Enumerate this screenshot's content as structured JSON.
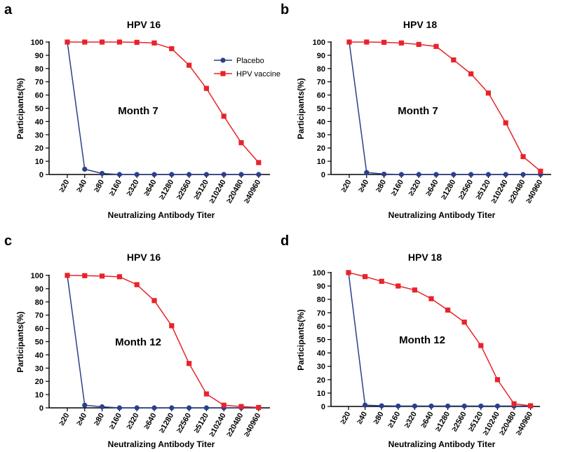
{
  "colors": {
    "placebo": "#2b3f8c",
    "vaccine": "#e8232a",
    "axis": "#000000"
  },
  "chart_data": [
    {
      "type": "line",
      "panel_letter": "a",
      "title": "HPV 16",
      "annotation": "Month 7",
      "xlabel": "Neutralizing Antibody Titer",
      "ylabel": "Participants(%)",
      "categories": [
        "≥20",
        "≥40",
        "≥80",
        "≥160",
        "≥320",
        "≥640",
        "≥1280",
        "≥2560",
        "≥5120",
        "≥10240",
        "≥20480",
        "≥40960"
      ],
      "yticks": [
        0,
        10,
        20,
        30,
        40,
        50,
        60,
        70,
        80,
        90,
        100
      ],
      "ylim": [
        0,
        100
      ],
      "legend": {
        "position": "top-right",
        "labels": [
          "Placebo",
          "HPV vaccine"
        ]
      },
      "series": [
        {
          "name": "Placebo",
          "marker": "circle",
          "values": [
            100,
            4,
            0.8,
            0,
            0,
            0,
            0,
            0,
            0,
            0,
            0,
            0
          ]
        },
        {
          "name": "HPV vaccine",
          "marker": "square",
          "values": [
            100,
            100,
            100,
            100,
            99.8,
            99.3,
            95,
            82.5,
            65,
            44,
            24,
            9
          ]
        }
      ]
    },
    {
      "type": "line",
      "panel_letter": "b",
      "title": "HPV 18",
      "annotation": "Month 7",
      "xlabel": "Neutralizing Antibody Titer",
      "ylabel": "Participants(%)",
      "categories": [
        "≥20",
        "≥40",
        "≥80",
        "≥160",
        "≥320",
        "≥640",
        "≥1280",
        "≥2560",
        "≥5120",
        "≥10240",
        "≥20480",
        "≥40960"
      ],
      "yticks": [
        0,
        10,
        20,
        30,
        40,
        50,
        60,
        70,
        80,
        90,
        100
      ],
      "ylim": [
        0,
        100
      ],
      "series": [
        {
          "name": "Placebo",
          "marker": "circle",
          "values": [
            100,
            1.5,
            0.3,
            0,
            0,
            0,
            0,
            0,
            0,
            0,
            0,
            0
          ]
        },
        {
          "name": "HPV vaccine",
          "marker": "square",
          "values": [
            100,
            100,
            99.8,
            99.3,
            98.2,
            96.7,
            86.5,
            76,
            61.5,
            39,
            13.5,
            2.5
          ]
        }
      ]
    },
    {
      "type": "line",
      "panel_letter": "c",
      "title": "HPV 16",
      "annotation": "Month 12",
      "xlabel": "Neutralizing Antibody Titer",
      "ylabel": "Participants(%)",
      "categories": [
        "≥20",
        "≥40",
        "≥80",
        "≥160",
        "≥320",
        "≥640",
        "≥1280",
        "≥2560",
        "≥5120",
        "≥10240",
        "≥20480",
        "≥40960"
      ],
      "yticks": [
        0,
        10,
        20,
        30,
        40,
        50,
        60,
        70,
        80,
        90,
        100
      ],
      "ylim": [
        0,
        100
      ],
      "series": [
        {
          "name": "Placebo",
          "marker": "circle",
          "values": [
            100,
            2,
            0.8,
            0,
            0,
            0,
            0,
            0,
            0,
            0,
            0,
            0
          ]
        },
        {
          "name": "HPV vaccine",
          "marker": "square",
          "values": [
            100,
            99.8,
            99.5,
            99,
            93,
            81,
            62,
            33.5,
            10.5,
            2,
            1,
            0.3
          ]
        }
      ]
    },
    {
      "type": "line",
      "panel_letter": "d",
      "title": "HPV 18",
      "annotation": "Month 12",
      "xlabel": "Neutralizing Antibody Titer",
      "ylabel": "Participants(%)",
      "categories": [
        "≥20",
        "≥40",
        "≥80",
        "≥160",
        "≥320",
        "≥640",
        "≥1280",
        "≥2560",
        "≥5120",
        "≥10240",
        "≥20480",
        "≥40960"
      ],
      "yticks": [
        0,
        10,
        20,
        30,
        40,
        50,
        60,
        70,
        80,
        90,
        100
      ],
      "ylim": [
        0,
        100
      ],
      "series": [
        {
          "name": "Placebo",
          "marker": "circle",
          "values": [
            100,
            1,
            0.5,
            0.3,
            0.3,
            0.3,
            0.3,
            0.3,
            0.3,
            0.3,
            0.3,
            0.3
          ]
        },
        {
          "name": "HPV vaccine",
          "marker": "square",
          "values": [
            100,
            97,
            93.5,
            90,
            87,
            80.5,
            72,
            63,
            45.5,
            20,
            2,
            0.5
          ]
        }
      ]
    }
  ]
}
